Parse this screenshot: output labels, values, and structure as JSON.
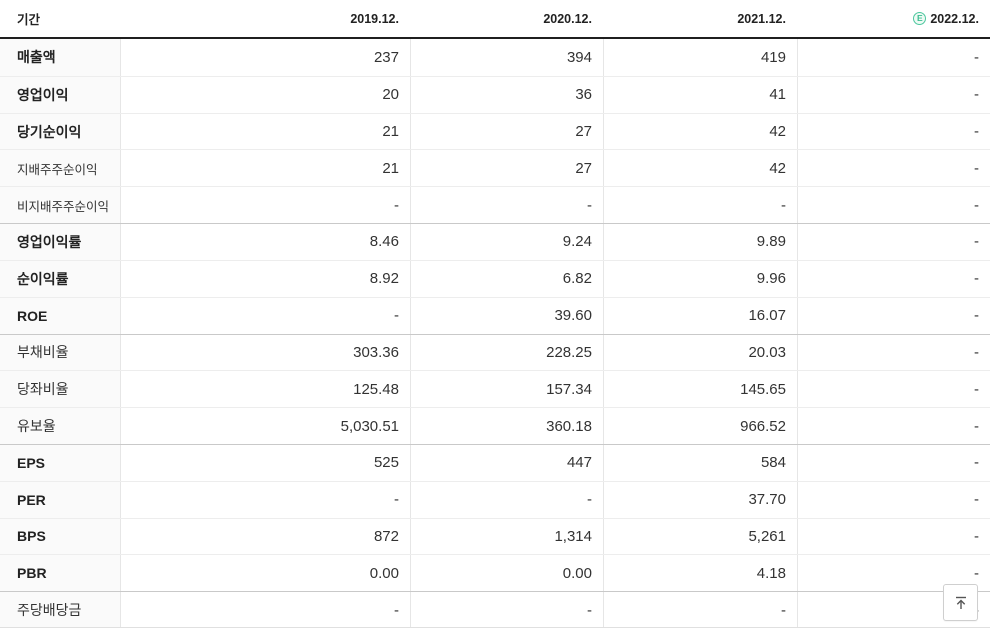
{
  "theme": {
    "accent_green": "#4cc79e",
    "accent_green_text": "#3cbd92",
    "header_border": "#1f1f1f",
    "row_line": "#ededed",
    "group_line": "#c9c9c9",
    "label_bg": "#fafafa"
  },
  "table": {
    "period_label": "기간",
    "estimate_badge": "E",
    "columns": [
      {
        "label": "2019.12.",
        "estimate": false
      },
      {
        "label": "2020.12.",
        "estimate": false
      },
      {
        "label": "2021.12.",
        "estimate": false
      },
      {
        "label": "2022.12.",
        "estimate": true
      }
    ],
    "rows": [
      {
        "label": "매출액",
        "strong": true,
        "sub": false,
        "group_start": false,
        "values": [
          "237",
          "394",
          "419",
          "-"
        ]
      },
      {
        "label": "영업이익",
        "strong": true,
        "sub": false,
        "group_start": false,
        "values": [
          "20",
          "36",
          "41",
          "-"
        ]
      },
      {
        "label": "당기순이익",
        "strong": true,
        "sub": false,
        "group_start": false,
        "values": [
          "21",
          "27",
          "42",
          "-"
        ]
      },
      {
        "label": "지배주주순이익",
        "strong": false,
        "sub": true,
        "group_start": false,
        "values": [
          "21",
          "27",
          "42",
          "-"
        ]
      },
      {
        "label": "비지배주주순이익",
        "strong": false,
        "sub": true,
        "group_start": false,
        "values": [
          "-",
          "-",
          "-",
          "-"
        ]
      },
      {
        "label": "영업이익률",
        "strong": true,
        "sub": false,
        "group_start": true,
        "values": [
          "8.46",
          "9.24",
          "9.89",
          "-"
        ]
      },
      {
        "label": "순이익률",
        "strong": true,
        "sub": false,
        "group_start": false,
        "values": [
          "8.92",
          "6.82",
          "9.96",
          "-"
        ]
      },
      {
        "label": "ROE",
        "strong": true,
        "sub": false,
        "group_start": false,
        "values": [
          "-",
          "39.60",
          "16.07",
          "-"
        ]
      },
      {
        "label": "부채비율",
        "strong": false,
        "sub": false,
        "group_start": true,
        "values": [
          "303.36",
          "228.25",
          "20.03",
          "-"
        ]
      },
      {
        "label": "당좌비율",
        "strong": false,
        "sub": false,
        "group_start": false,
        "values": [
          "125.48",
          "157.34",
          "145.65",
          "-"
        ]
      },
      {
        "label": "유보율",
        "strong": false,
        "sub": false,
        "group_start": false,
        "values": [
          "5,030.51",
          "360.18",
          "966.52",
          "-"
        ]
      },
      {
        "label": "EPS",
        "strong": true,
        "sub": false,
        "group_start": true,
        "values": [
          "525",
          "447",
          "584",
          "-"
        ]
      },
      {
        "label": "PER",
        "strong": true,
        "sub": false,
        "group_start": false,
        "values": [
          "-",
          "-",
          "37.70",
          "-"
        ]
      },
      {
        "label": "BPS",
        "strong": true,
        "sub": false,
        "group_start": false,
        "values": [
          "872",
          "1,314",
          "5,261",
          "-"
        ]
      },
      {
        "label": "PBR",
        "strong": true,
        "sub": false,
        "group_start": false,
        "values": [
          "0.00",
          "0.00",
          "4.18",
          "-"
        ]
      },
      {
        "label": "주당배당금",
        "strong": false,
        "sub": false,
        "group_start": true,
        "values": [
          "-",
          "-",
          "-",
          "-"
        ]
      }
    ]
  },
  "scroll_top_button": {
    "name": "scroll-to-top"
  }
}
